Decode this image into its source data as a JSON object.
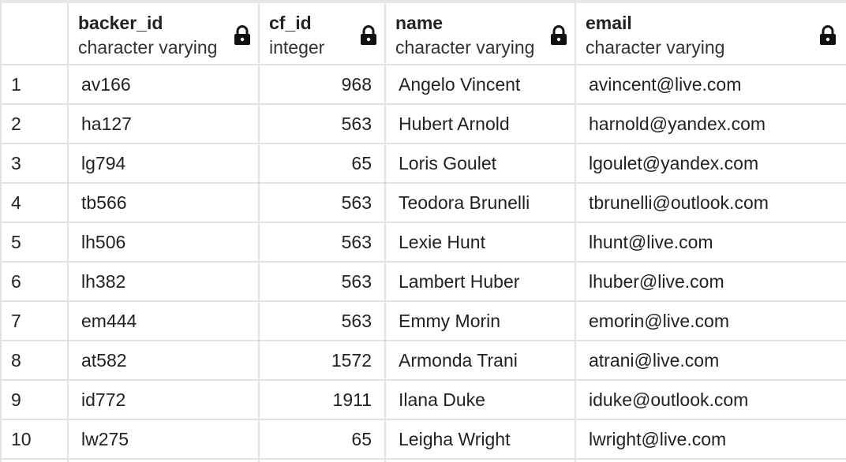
{
  "columns": [
    {
      "name": "backer_id",
      "type": "character varying",
      "locked_icon": "lock-icon"
    },
    {
      "name": "cf_id",
      "type": "integer",
      "locked_icon": "lock-icon"
    },
    {
      "name": "name",
      "type": "character varying",
      "locked_icon": "lock-icon"
    },
    {
      "name": "email",
      "type": "character varying",
      "locked_icon": "lock-icon"
    }
  ],
  "rows": [
    {
      "num": "1",
      "backer_id": "av166",
      "cf_id": "968",
      "name": "Angelo Vincent",
      "email": "avincent@live.com"
    },
    {
      "num": "2",
      "backer_id": "ha127",
      "cf_id": "563",
      "name": "Hubert Arnold",
      "email": "harnold@yandex.com"
    },
    {
      "num": "3",
      "backer_id": "lg794",
      "cf_id": "65",
      "name": "Loris Goulet",
      "email": "lgoulet@yandex.com"
    },
    {
      "num": "4",
      "backer_id": "tb566",
      "cf_id": "563",
      "name": "Teodora Brunelli",
      "email": "tbrunelli@outlook.com"
    },
    {
      "num": "5",
      "backer_id": "lh506",
      "cf_id": "563",
      "name": "Lexie Hunt",
      "email": "lhunt@live.com"
    },
    {
      "num": "6",
      "backer_id": "lh382",
      "cf_id": "563",
      "name": "Lambert Huber",
      "email": "lhuber@live.com"
    },
    {
      "num": "7",
      "backer_id": "em444",
      "cf_id": "563",
      "name": "Emmy Morin",
      "email": "emorin@live.com"
    },
    {
      "num": "8",
      "backer_id": "at582",
      "cf_id": "1572",
      "name": "Armonda Trani",
      "email": "atrani@live.com"
    },
    {
      "num": "9",
      "backer_id": "id772",
      "cf_id": "1911",
      "name": "Ilana Duke",
      "email": "iduke@outlook.com"
    },
    {
      "num": "10",
      "backer_id": "lw275",
      "cf_id": "65",
      "name": "Leigha Wright",
      "email": "lwright@live.com"
    }
  ],
  "colors": {
    "grid_line": "#dfe3e8",
    "text": "#222222",
    "background": "#ffffff"
  }
}
